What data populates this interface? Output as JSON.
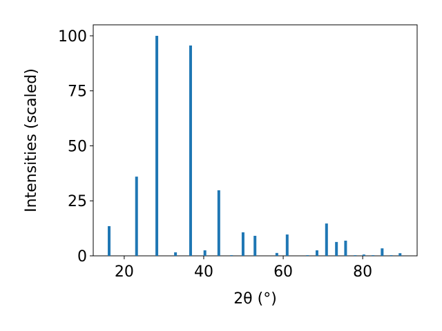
{
  "chart_data": {
    "type": "bar",
    "xlabel": "2θ (°)",
    "ylabel": "Intensities (scaled)",
    "x": [
      16.2,
      23.1,
      28.2,
      32.9,
      36.7,
      40.3,
      43.8,
      47.0,
      49.9,
      52.9,
      58.4,
      61.0,
      66.1,
      68.5,
      70.9,
      73.4,
      75.7,
      78.1,
      80.3,
      82.6,
      84.9,
      87.2,
      89.4
    ],
    "values": [
      13.5,
      36,
      100,
      1.6,
      95.6,
      2.5,
      29.8,
      0.3,
      10.7,
      9.1,
      1.3,
      9.7,
      0.3,
      2.5,
      14.7,
      6.3,
      6.9,
      0.3,
      0.6,
      0.3,
      3.4,
      0.3,
      1.2
    ],
    "color": "#1f77b4",
    "xlim": [
      12.2,
      93.7
    ],
    "xticks": [
      20,
      40,
      60,
      80
    ],
    "ylim": [
      0,
      105
    ],
    "yticks": [
      0,
      25,
      50,
      75,
      100
    ]
  }
}
